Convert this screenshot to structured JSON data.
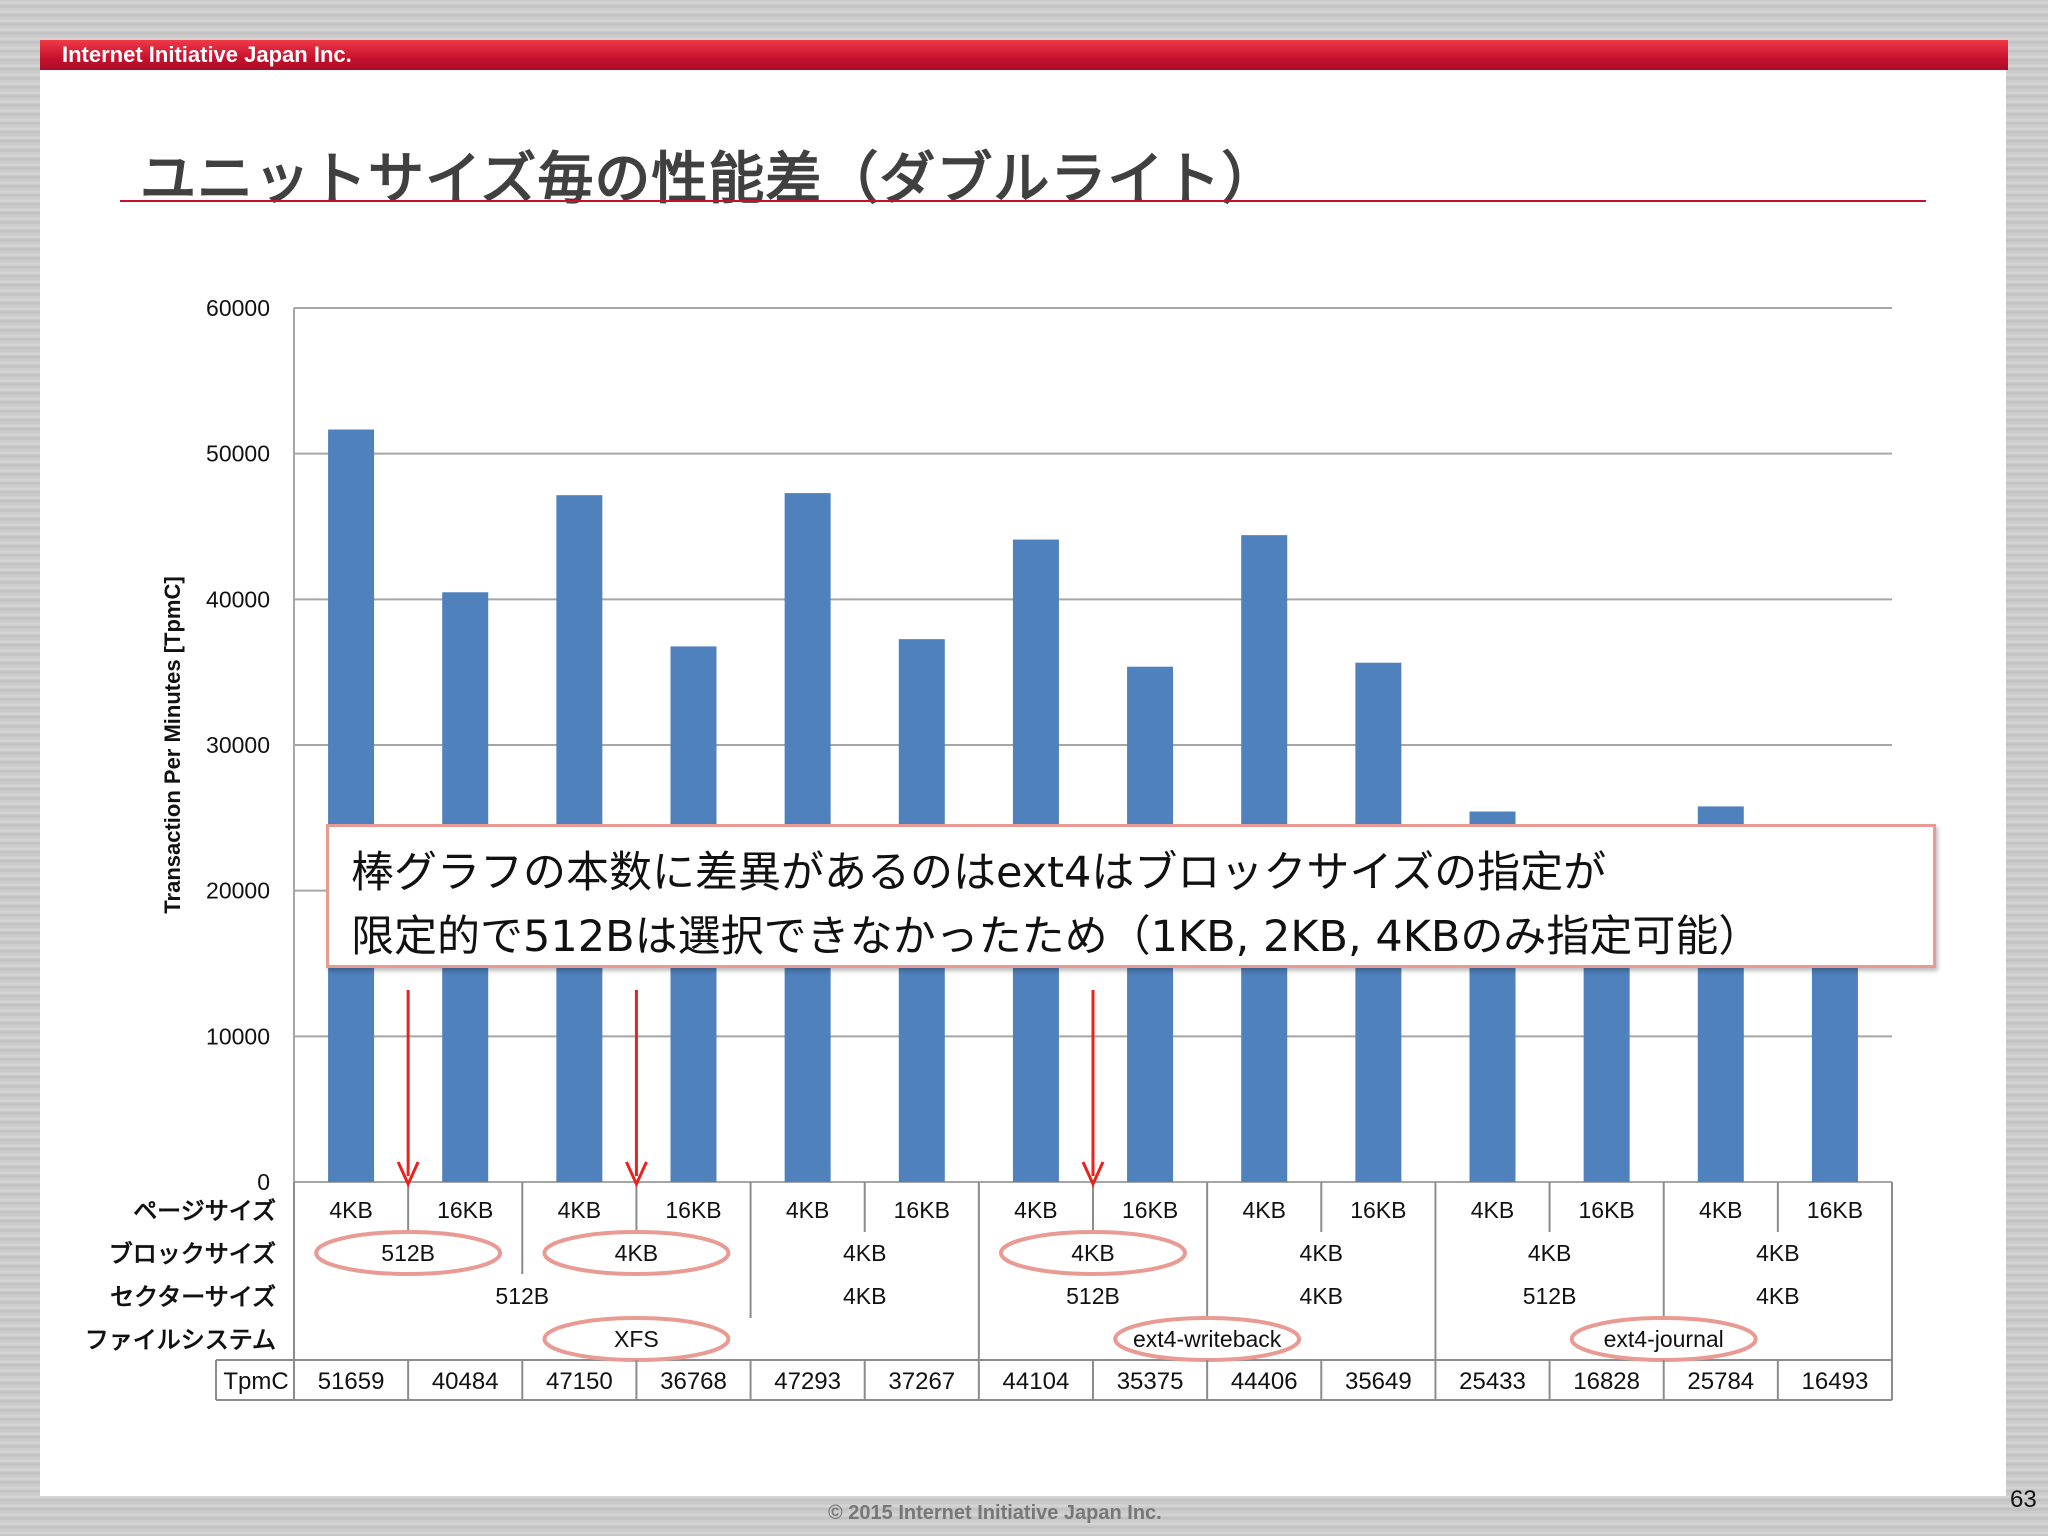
{
  "header": {
    "company": "Internet Initiative Japan Inc."
  },
  "title": "ユニットサイズ毎の性能差（ダブルライト）",
  "callout": {
    "line1": "棒グラフの本数に差異があるのはext4はブロックサイズの指定が",
    "line2": "限定的で512Bは選択できなかったため（1KB, 2KB, 4KBのみ指定可能）"
  },
  "footer": {
    "copyright": "© 2015  Internet Initiative Japan Inc.",
    "page_number": "63"
  },
  "chart_data": {
    "type": "bar",
    "ylabel": "Transaction Per Minutes [TpmC]",
    "ylim": [
      0,
      60000
    ],
    "yticks": [
      0,
      10000,
      20000,
      30000,
      40000,
      50000,
      60000
    ],
    "grid": true,
    "bar_color": "#4f81bd",
    "values": [
      51659,
      40484,
      47150,
      36768,
      47293,
      37267,
      44104,
      35375,
      44406,
      35649,
      25433,
      16828,
      25784,
      16493
    ],
    "table": {
      "row_labels": {
        "page": "ページサイズ",
        "block": "ブロックサイズ",
        "sector": "セクターサイズ",
        "fs": "ファイルシステム",
        "tpmc": "TpmC"
      },
      "page_sizes": [
        "4KB",
        "16KB",
        "4KB",
        "16KB",
        "4KB",
        "16KB",
        "4KB",
        "16KB",
        "4KB",
        "16KB",
        "4KB",
        "16KB",
        "4KB",
        "16KB"
      ],
      "block_sizes": [
        {
          "label": "512B",
          "span": 2,
          "highlight": true
        },
        {
          "label": "4KB",
          "span": 2,
          "highlight": true
        },
        {
          "label": "4KB",
          "span": 2,
          "highlight": false
        },
        {
          "label": "4KB",
          "span": 2,
          "highlight": true
        },
        {
          "label": "4KB",
          "span": 2,
          "highlight": false
        },
        {
          "label": "4KB",
          "span": 2,
          "highlight": false
        },
        {
          "label": "4KB",
          "span": 2,
          "highlight": false
        }
      ],
      "sector_sizes": [
        {
          "label": "512B",
          "span": 4
        },
        {
          "label": "4KB",
          "span": 2
        },
        {
          "label": "512B",
          "span": 2
        },
        {
          "label": "4KB",
          "span": 2
        },
        {
          "label": "512B",
          "span": 2
        },
        {
          "label": "4KB",
          "span": 2
        }
      ],
      "filesystems": [
        {
          "label": "XFS",
          "span": 6,
          "highlight": true
        },
        {
          "label": "ext4-writeback",
          "span": 4,
          "highlight": true
        },
        {
          "label": "ext4-journal",
          "span": 4,
          "highlight": true
        }
      ]
    },
    "arrow_color": "#e8231e",
    "highlight_color": "#e89a93"
  }
}
